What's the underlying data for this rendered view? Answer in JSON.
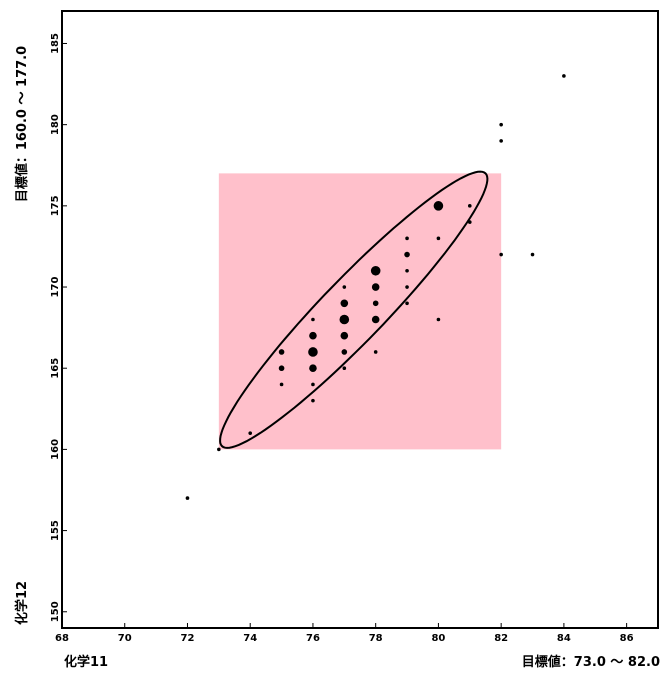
{
  "chart_data": {
    "type": "scatter",
    "x_axis_label": "化学11",
    "y_axis_label": "化学12",
    "x_target_label": "目標値：73.0 〜 82.0",
    "y_target_label": "目標値：160.0 〜 177.0",
    "xlim": [
      68,
      87
    ],
    "ylim": [
      149,
      187
    ],
    "x_ticks": [
      68,
      70,
      72,
      74,
      76,
      78,
      80,
      82,
      84,
      86
    ],
    "x_tick_labels": [
      "68",
      "70",
      "72",
      "74",
      "76",
      "78",
      "80",
      "82",
      "84",
      "86"
    ],
    "y_ticks": [
      150,
      155,
      160,
      165,
      170,
      175,
      180,
      185
    ],
    "y_tick_labels": [
      "150",
      "155",
      "160",
      "165",
      "170",
      "175",
      "180",
      "185"
    ],
    "target_region": {
      "x": [
        73.0,
        82.0
      ],
      "y": [
        160.0,
        177.0
      ],
      "color": "#ffc0cb"
    },
    "ellipse": {
      "center": [
        77.3,
        168.6
      ],
      "endpoint_low": [
        73.0,
        160.0
      ],
      "endpoint_high": [
        81.5,
        177.0
      ],
      "minor_radius_x": 1.0
    },
    "points": [
      {
        "x": 72,
        "y": 157,
        "n": 1
      },
      {
        "x": 73,
        "y": 160,
        "n": 1
      },
      {
        "x": 74,
        "y": 161,
        "n": 1
      },
      {
        "x": 75,
        "y": 164,
        "n": 1
      },
      {
        "x": 75,
        "y": 165,
        "n": 2
      },
      {
        "x": 75,
        "y": 166,
        "n": 2
      },
      {
        "x": 76,
        "y": 163,
        "n": 1
      },
      {
        "x": 76,
        "y": 164,
        "n": 1
      },
      {
        "x": 76,
        "y": 165,
        "n": 3
      },
      {
        "x": 76,
        "y": 166,
        "n": 4
      },
      {
        "x": 76,
        "y": 167,
        "n": 3
      },
      {
        "x": 76,
        "y": 168,
        "n": 1
      },
      {
        "x": 77,
        "y": 165,
        "n": 1
      },
      {
        "x": 77,
        "y": 166,
        "n": 2
      },
      {
        "x": 77,
        "y": 167,
        "n": 3
      },
      {
        "x": 77,
        "y": 168,
        "n": 4
      },
      {
        "x": 77,
        "y": 169,
        "n": 3
      },
      {
        "x": 77,
        "y": 170,
        "n": 1
      },
      {
        "x": 78,
        "y": 166,
        "n": 1
      },
      {
        "x": 78,
        "y": 168,
        "n": 3
      },
      {
        "x": 78,
        "y": 169,
        "n": 2
      },
      {
        "x": 78,
        "y": 170,
        "n": 3
      },
      {
        "x": 78,
        "y": 171,
        "n": 4
      },
      {
        "x": 79,
        "y": 169,
        "n": 1
      },
      {
        "x": 79,
        "y": 170,
        "n": 1
      },
      {
        "x": 79,
        "y": 171,
        "n": 1
      },
      {
        "x": 79,
        "y": 172,
        "n": 2
      },
      {
        "x": 79,
        "y": 173,
        "n": 1
      },
      {
        "x": 80,
        "y": 168,
        "n": 1
      },
      {
        "x": 80,
        "y": 173,
        "n": 1
      },
      {
        "x": 80,
        "y": 175,
        "n": 4
      },
      {
        "x": 81,
        "y": 174,
        "n": 1
      },
      {
        "x": 81,
        "y": 175,
        "n": 1
      },
      {
        "x": 82,
        "y": 172,
        "n": 1
      },
      {
        "x": 82,
        "y": 179,
        "n": 1
      },
      {
        "x": 82,
        "y": 180,
        "n": 1
      },
      {
        "x": 83,
        "y": 172,
        "n": 1
      },
      {
        "x": 84,
        "y": 183,
        "n": 1
      }
    ]
  }
}
